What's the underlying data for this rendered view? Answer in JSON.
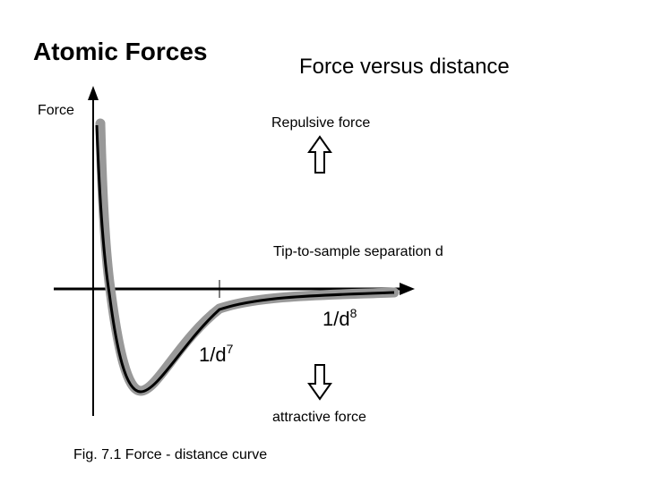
{
  "title": "Atomic Forces",
  "subtitle": "Force versus distance",
  "y_axis_label": "Force",
  "repulsive_label": "Repulsive force",
  "x_axis_label": "Tip-to-sample separation d",
  "term_8": {
    "base": "1/d",
    "exponent": "8"
  },
  "term_7": {
    "base": "1/d",
    "exponent": "7"
  },
  "attractive_label": "attractive force",
  "caption": "Fig. 7.1  Force  - distance curve"
}
